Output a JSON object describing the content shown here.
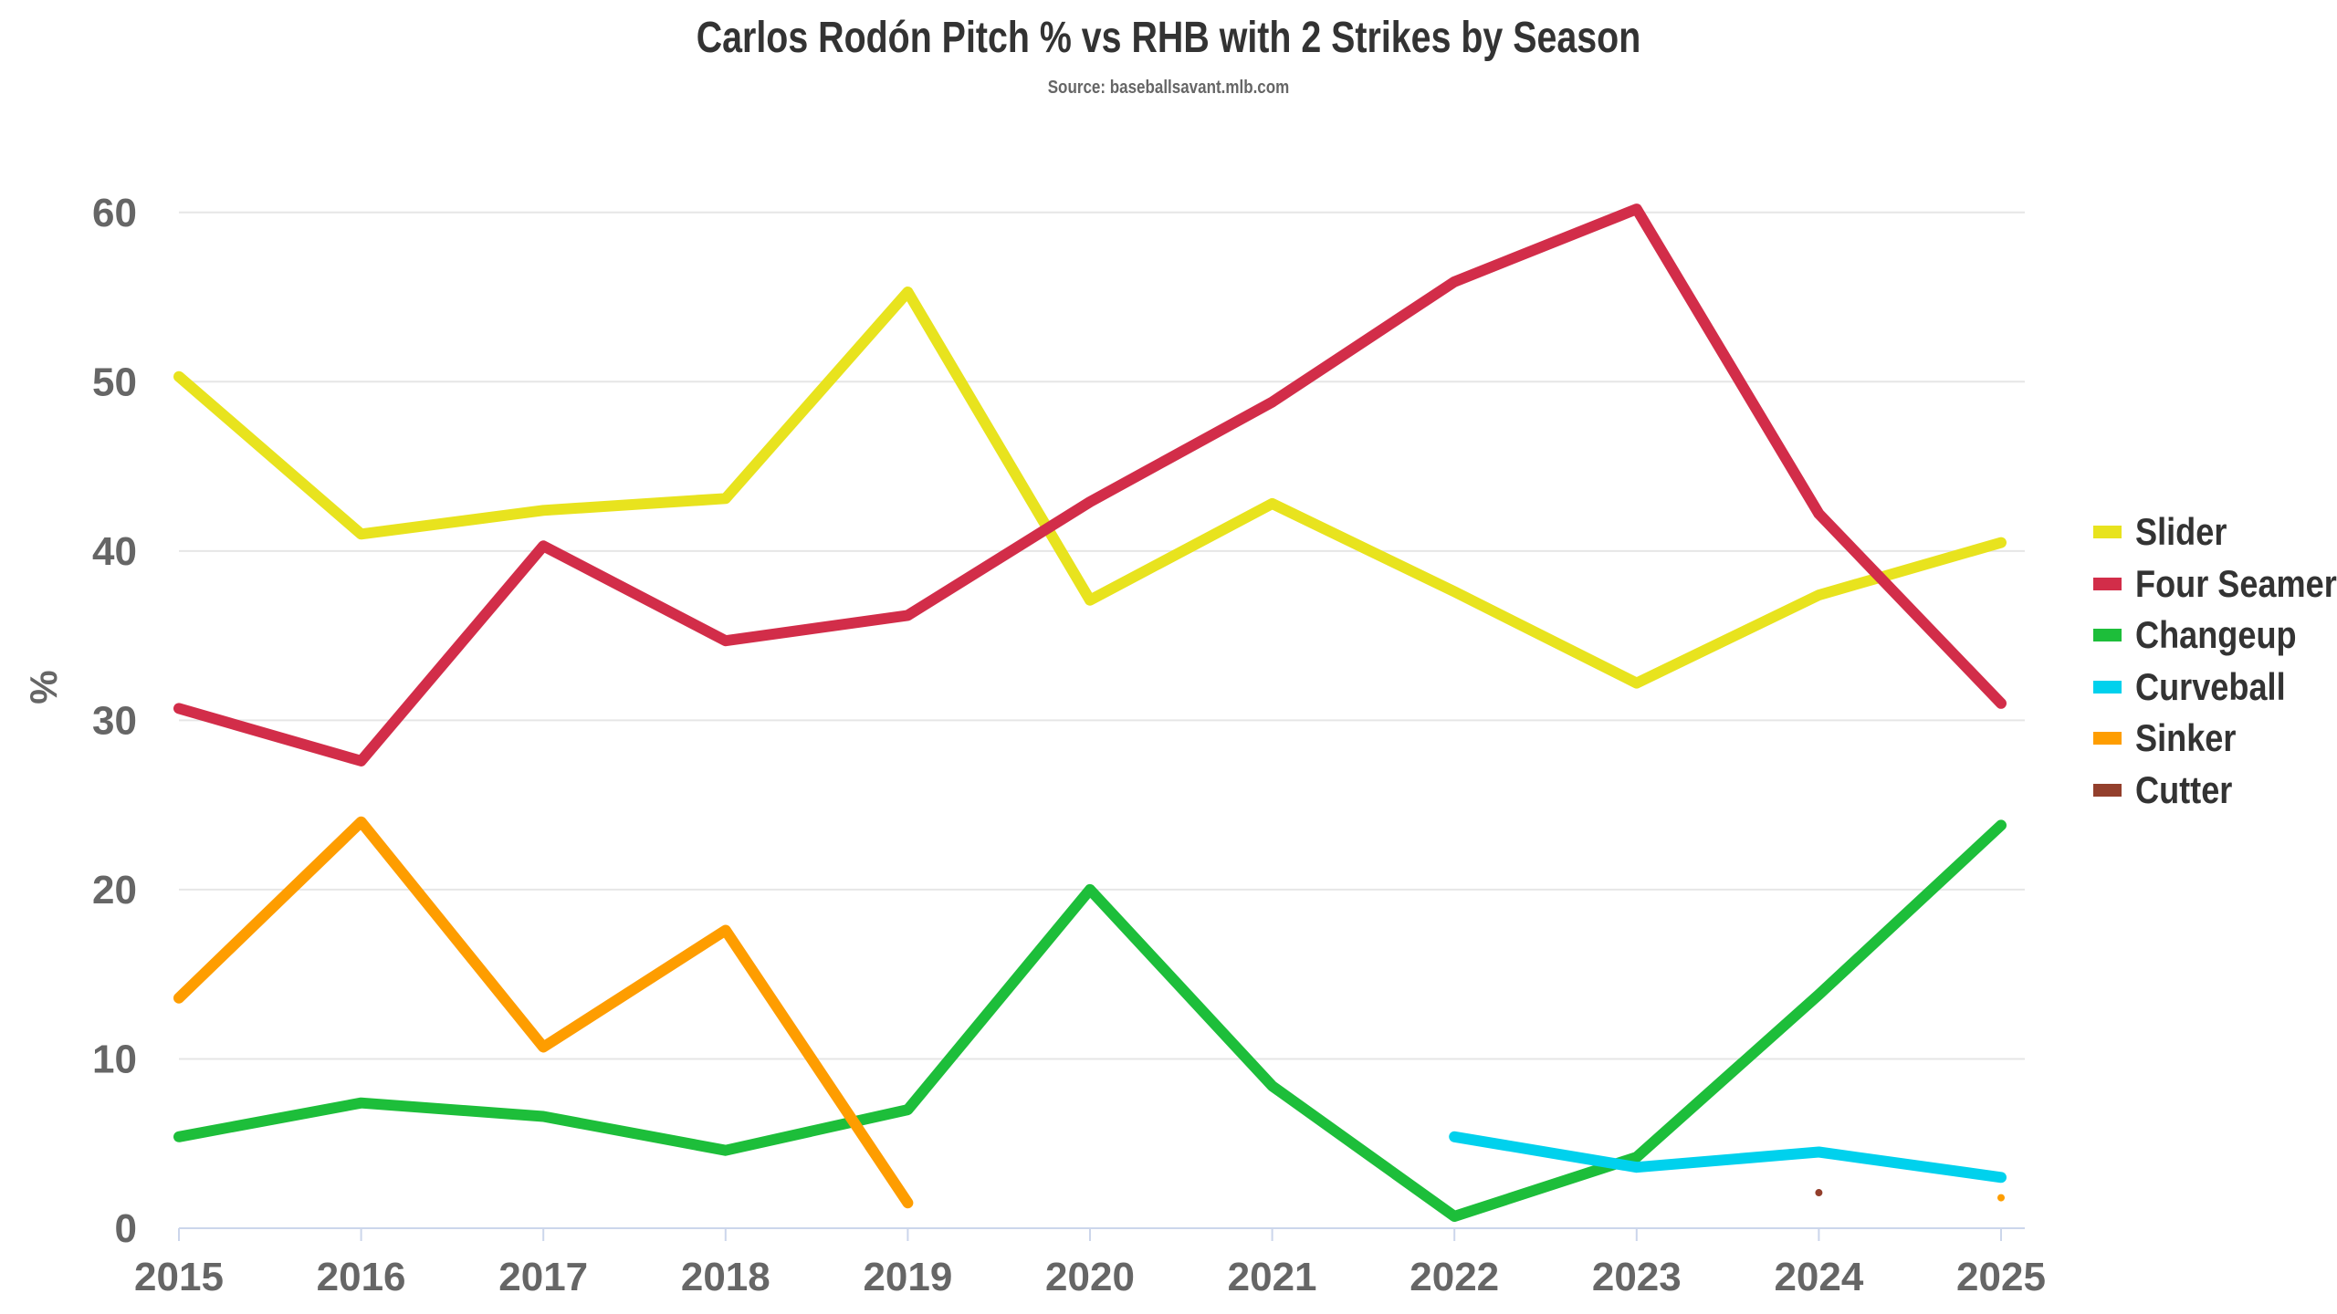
{
  "title": "Carlos Rodón Pitch % vs RHB with 2 Strikes by Season",
  "subtitle": "Source: baseballsavant.mlb.com",
  "chart_data": {
    "type": "line",
    "title": "Carlos Rodón Pitch % vs RHB with 2 Strikes by Season",
    "subtitle": "Source: baseballsavant.mlb.com",
    "xlabel": "",
    "ylabel": "%",
    "x": [
      "2015",
      "2016",
      "2017",
      "2018",
      "2019",
      "2020",
      "2021",
      "2022",
      "2023",
      "2024",
      "2025"
    ],
    "ylim": [
      0,
      65
    ],
    "yticks": [
      "0",
      "10",
      "20",
      "30",
      "40",
      "50",
      "60"
    ],
    "grid": true,
    "legend_position": "right",
    "series": [
      {
        "name": "Slider",
        "color": "#e8e31e",
        "values": [
          50.3,
          41.0,
          42.4,
          43.1,
          55.3,
          37.1,
          42.8,
          37.6,
          32.2,
          37.4,
          40.5
        ]
      },
      {
        "name": "Four Seamer",
        "color": "#d22d49",
        "values": [
          30.7,
          27.6,
          40.3,
          34.7,
          36.2,
          42.9,
          48.8,
          55.9,
          60.2,
          42.2,
          31.0
        ]
      },
      {
        "name": "Changeup",
        "color": "#1dbe3a",
        "values": [
          5.4,
          7.4,
          6.6,
          4.6,
          7.0,
          20.0,
          8.4,
          0.7,
          4.2,
          13.8,
          23.8
        ]
      },
      {
        "name": "Curveball",
        "color": "#00d1ed",
        "values": [
          null,
          null,
          null,
          null,
          null,
          null,
          null,
          5.4,
          3.6,
          4.5,
          3.0
        ]
      },
      {
        "name": "Sinker",
        "color": "#fe9d00",
        "values": [
          13.6,
          24.0,
          10.7,
          17.6,
          1.5,
          null,
          null,
          null,
          null,
          null,
          1.8
        ]
      },
      {
        "name": "Cutter",
        "color": "#933f2c",
        "values": [
          null,
          null,
          null,
          null,
          null,
          null,
          null,
          null,
          null,
          2.1,
          null
        ]
      }
    ]
  }
}
